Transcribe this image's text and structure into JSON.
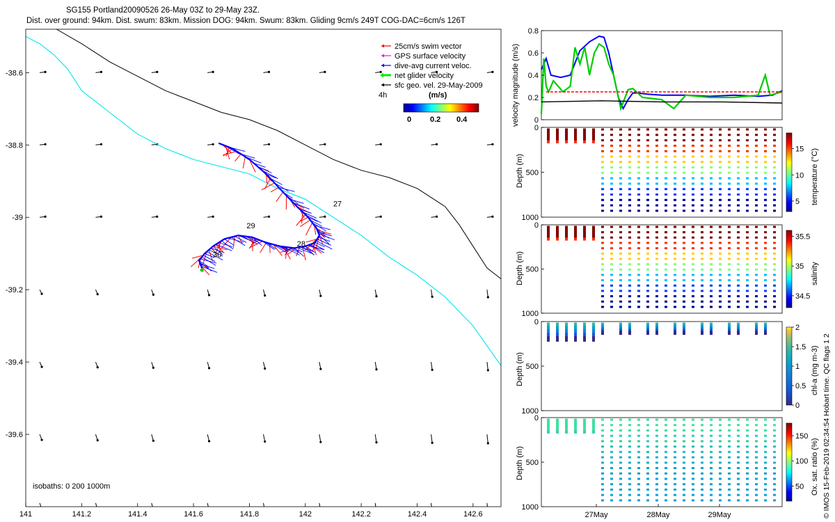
{
  "title": {
    "line1": "SG155 Portland20090526 26-May 03Z to 29-May 23Z.",
    "line2": "Dist. over ground: 94km. Dist. swum: 83km. Mission DOG: 94km. Swum: 83km. Gliding 9cm/s 249T COG-DAC=6cm/s 126T"
  },
  "colors": {
    "swim": "#ff0000",
    "gps": "#ff00ff",
    "dac": "#0000ff",
    "net": "#00cc00",
    "sfc": "#000000",
    "isobath200": "#00e5ee",
    "isobath1000": "#000000"
  },
  "footer_note": "© IMOS 15-Feb-2019 02:34:54 Hobart time. QC flags 1  2",
  "chart_data": [
    {
      "type": "line",
      "name": "glider-track-map",
      "xlim": [
        141,
        142.7
      ],
      "ylim": [
        -39.8,
        -38.48
      ],
      "xticks": [
        "141",
        "141.2",
        "141.4",
        "141.6",
        "141.8",
        "142",
        "142.2",
        "142.4",
        "142.6"
      ],
      "xtick_values": [
        141,
        141.2,
        141.4,
        141.6,
        141.8,
        142,
        142.2,
        142.4,
        142.6
      ],
      "yticks": [
        "-38.6",
        "-38.8",
        "-39",
        "-39.2",
        "-39.4",
        "-39.6"
      ],
      "ytick_values": [
        -38.6,
        -38.8,
        -39,
        -39.2,
        -39.4,
        -39.6
      ],
      "legend": [
        {
          "label": "25cm/s swim vector",
          "color": "#ff0000"
        },
        {
          "label": "GPS surface velocity",
          "color": "#ff00ff"
        },
        {
          "label": "dive-avg current veloc.",
          "color": "#0000ff"
        },
        {
          "label": "net glider velocity",
          "color": "#00cc00"
        },
        {
          "label": "sfc geo. vel. 29-May-2009",
          "color": "#000000"
        }
      ],
      "legend_4h": "4h",
      "colorbar_label": "(m/s)",
      "colorbar_ticks": [
        "0",
        "0.2",
        "0.4"
      ],
      "isobath_note": "isobaths: 0   200   1000m",
      "track": {
        "lon": [
          141.69,
          141.74,
          141.8,
          141.86,
          141.92,
          141.97,
          142.01,
          142.04,
          142.05,
          142.035,
          142.0,
          141.96,
          141.91,
          141.86,
          141.81,
          141.76,
          141.71,
          141.67,
          141.64,
          141.62,
          141.63
        ],
        "lat": [
          -38.795,
          -38.81,
          -38.84,
          -38.88,
          -38.93,
          -38.97,
          -39.0,
          -39.03,
          -39.05,
          -39.07,
          -39.08,
          -39.085,
          -39.08,
          -39.07,
          -39.055,
          -39.05,
          -39.06,
          -39.08,
          -39.1,
          -39.12,
          -39.14
        ]
      },
      "day_labels": [
        {
          "text": "27",
          "lon": 142.1,
          "lat": -38.97
        },
        {
          "text": "28",
          "lon": 141.97,
          "lat": -39.08
        },
        {
          "text": "29",
          "lon": 141.79,
          "lat": -39.03
        },
        {
          "text": "30",
          "lon": 141.67,
          "lat": -39.11
        }
      ],
      "isobath_200": {
        "lon": [
          141.0,
          141.05,
          141.1,
          141.15,
          141.2,
          141.3,
          141.4,
          141.5,
          141.6,
          141.7,
          141.8,
          141.9,
          142.0,
          142.1,
          142.2,
          142.3,
          142.4,
          142.5,
          142.6,
          142.7
        ],
        "lat": [
          -38.5,
          -38.52,
          -38.55,
          -38.59,
          -38.65,
          -38.71,
          -38.77,
          -38.81,
          -38.84,
          -38.86,
          -38.88,
          -38.92,
          -38.95,
          -39.0,
          -39.05,
          -39.11,
          -39.16,
          -39.22,
          -39.3,
          -39.41
        ]
      },
      "isobath_1000": {
        "lon": [
          141.11,
          141.2,
          141.3,
          141.4,
          141.5,
          141.6,
          141.7,
          141.8,
          141.9,
          142.0,
          142.1,
          142.2,
          142.3,
          142.4,
          142.5,
          142.55,
          142.6,
          142.65,
          142.7
        ],
        "lat": [
          -38.48,
          -38.52,
          -38.57,
          -38.61,
          -38.65,
          -38.68,
          -38.71,
          -38.73,
          -38.76,
          -38.8,
          -38.84,
          -38.87,
          -38.89,
          -38.92,
          -38.97,
          -39.02,
          -39.08,
          -39.14,
          -39.17
        ]
      }
    },
    {
      "type": "line",
      "name": "velocity-magnitude",
      "ylabel": "velocity magnitude (m/s)",
      "ylim": [
        0,
        0.8
      ],
      "yticks": [
        "0",
        "0.2",
        "0.4",
        "0.6",
        "0.8"
      ],
      "ytick_values": [
        0,
        0.2,
        0.4,
        0.6,
        0.8
      ],
      "xlim": [
        0,
        100
      ],
      "series": [
        {
          "name": "dive-avg current",
          "color": "#0000ff",
          "x": [
            0,
            2,
            4,
            8,
            12,
            16,
            20,
            24,
            26,
            28,
            30,
            32,
            34,
            36,
            38,
            40,
            44,
            50,
            60,
            70,
            80,
            90,
            96,
            100
          ],
          "values": [
            0.45,
            0.55,
            0.4,
            0.38,
            0.4,
            0.62,
            0.7,
            0.75,
            0.74,
            0.6,
            0.4,
            0.2,
            0.1,
            0.18,
            0.24,
            0.24,
            0.23,
            0.22,
            0.22,
            0.21,
            0.22,
            0.21,
            0.22,
            0.26
          ]
        },
        {
          "name": "net glider",
          "color": "#00cc00",
          "x": [
            0,
            1,
            2,
            3,
            5,
            7,
            9,
            12,
            14,
            16,
            18,
            20,
            22,
            24,
            26,
            28,
            30,
            33,
            36,
            38,
            42,
            50,
            55,
            60,
            70,
            80,
            90,
            93,
            95,
            100
          ],
          "values": [
            0.05,
            0.55,
            0.3,
            0.25,
            0.35,
            0.3,
            0.25,
            0.3,
            0.65,
            0.5,
            0.65,
            0.4,
            0.6,
            0.68,
            0.65,
            0.5,
            0.4,
            0.1,
            0.27,
            0.28,
            0.2,
            0.18,
            0.1,
            0.22,
            0.2,
            0.2,
            0.22,
            0.4,
            0.22,
            0.25
          ]
        },
        {
          "name": "swim",
          "color": "#ff0000",
          "x": [
            2,
            100
          ],
          "values": [
            0.25,
            0.25
          ]
        },
        {
          "name": "sfc geo",
          "color": "#000000",
          "x": [
            0,
            25,
            50,
            75,
            100
          ],
          "values": [
            0.16,
            0.17,
            0.16,
            0.16,
            0.15
          ]
        }
      ]
    },
    {
      "type": "scatter",
      "name": "temperature-section",
      "ylabel": "Depth (m)",
      "yticks": [
        "0",
        "500",
        "1000"
      ],
      "colorbar_label": "temperature (°C)",
      "colorbar_ticks": [
        "5",
        "10",
        "15"
      ],
      "colorbar_range": [
        3,
        18
      ]
    },
    {
      "type": "scatter",
      "name": "salinity-section",
      "ylabel": "Depth (m)",
      "yticks": [
        "0",
        "500",
        "1000"
      ],
      "colorbar_label": "salinity",
      "colorbar_ticks": [
        "34.5",
        "35",
        "35.5"
      ],
      "colorbar_range": [
        34.3,
        35.6
      ]
    },
    {
      "type": "scatter",
      "name": "chla-section",
      "ylabel": "Depth (m)",
      "yticks": [
        "0",
        "500",
        "1000"
      ],
      "colorbar_label": "chl-a (mg m-3)",
      "colorbar_ticks": [
        "0",
        "0.5",
        "1",
        "1.5",
        "2"
      ],
      "colorbar_range": [
        0,
        2
      ]
    },
    {
      "type": "scatter",
      "name": "oxygen-section",
      "ylabel": "Depth (m)",
      "yticks": [
        "0",
        "500",
        "1000"
      ],
      "colorbar_label": "Ox. sat. ratio (%)",
      "colorbar_ticks": [
        "50",
        "100",
        "150"
      ],
      "colorbar_range": [
        20,
        175
      ],
      "xticks": [
        "27May",
        "28May",
        "29May"
      ]
    }
  ]
}
